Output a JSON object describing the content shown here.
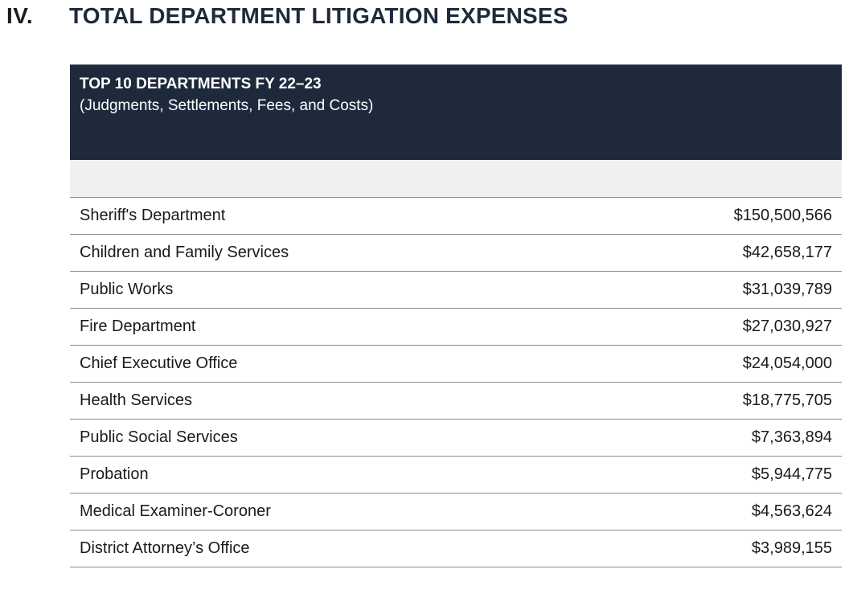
{
  "section": {
    "number": "IV.",
    "title": "TOTAL DEPARTMENT LITIGATION EXPENSES"
  },
  "table": {
    "title": "TOP 10 DEPARTMENTS FY 22–23",
    "subtitle": "(Judgments, Settlements, Fees, and Costs)",
    "rows": [
      {
        "department": "Sheriff's Department",
        "amount": "$150,500,566"
      },
      {
        "department": "Children and Family Services",
        "amount": "$42,658,177"
      },
      {
        "department": "Public Works",
        "amount": "$31,039,789"
      },
      {
        "department": "Fire Department",
        "amount": "$27,030,927"
      },
      {
        "department": "Chief Executive Office",
        "amount": "$24,054,000"
      },
      {
        "department": "Health Services",
        "amount": "$18,775,705"
      },
      {
        "department": "Public Social Services",
        "amount": "$7,363,894"
      },
      {
        "department": "Probation",
        "amount": "$5,944,775"
      },
      {
        "department": "Medical Examiner-Coroner",
        "amount": "$4,563,624"
      },
      {
        "department": "District Attorney’s Office",
        "amount": "$3,989,155"
      }
    ]
  },
  "colors": {
    "header_background": "#1e2a3c",
    "title_text": "#1e2a3c",
    "blank_band": "#f0f0f0"
  }
}
